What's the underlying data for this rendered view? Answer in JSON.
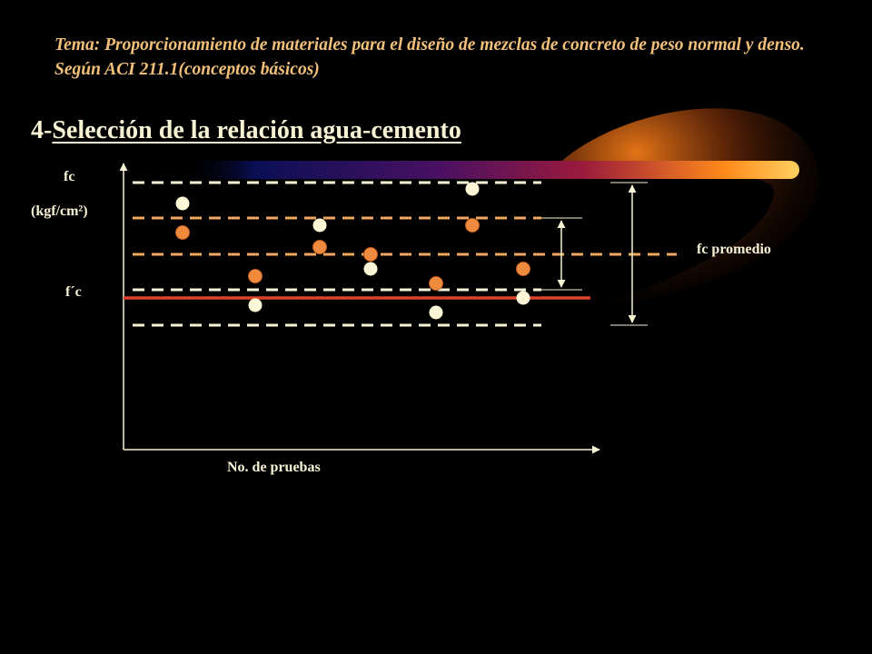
{
  "topic": "Tema: Proporcionamiento de materiales para el diseño de mezclas de concreto de peso normal y denso. Según ACI 211.1(conceptos básicos)",
  "heading": {
    "number": "4-",
    "text": "Selección de la relación agua-cemento"
  },
  "diagram": {
    "y_label_top": "fc",
    "y_label_units": "(kgf/cm²)",
    "fc_spec_label": "f´c",
    "fc_average_label": "fc promedio",
    "x_label": "No. de pruebas",
    "colors": {
      "text": "#f7f2d4",
      "topic_text": "#f3c07a",
      "dashed_white": "#f7f2d4",
      "dashed_orange": "#f0a860",
      "fc_line": "#e0402a",
      "point_orange": "#f08a3c",
      "point_white": "#fff9d8"
    }
  }
}
